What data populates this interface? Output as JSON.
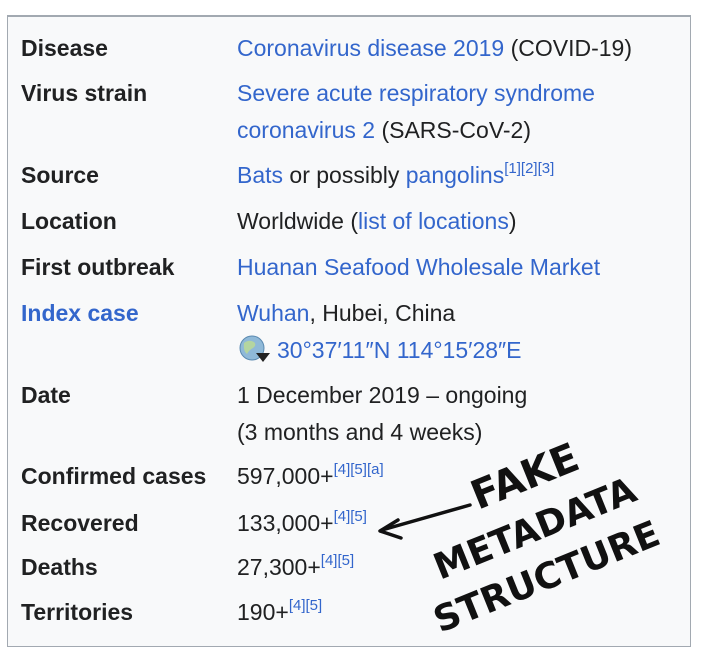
{
  "rows": {
    "disease": {
      "label": "Disease",
      "link": "Coronavirus disease 2019",
      "rest": " (COVID-19)"
    },
    "virus": {
      "label": "Virus strain",
      "link1": "Severe acute respiratory syndrome",
      "link2": "coronavirus 2",
      "rest": " (SARS-CoV-2)"
    },
    "source": {
      "label": "Source",
      "link1": "Bats",
      "mid": " or possibly ",
      "link2": "pangolins",
      "refs": [
        "[1]",
        "[2]",
        "[3]"
      ]
    },
    "location": {
      "label": "Location",
      "pre": "Worldwide (",
      "link": "list of locations",
      "post": ")"
    },
    "outbreak": {
      "label": "First outbreak",
      "link": "Huanan Seafood Wholesale Market"
    },
    "index": {
      "label": "Index case",
      "link": "Wuhan",
      "rest": ", Hubei, China",
      "coords": "30°37′11″N 114°15′28″E"
    },
    "date": {
      "label": "Date",
      "line1": "1 December 2019 – ongoing",
      "line2": "(3 months and 4 weeks)"
    },
    "confirmed": {
      "label": "Confirmed cases",
      "value": "597,000+",
      "refs": [
        "[4]",
        "[5]",
        "[a]"
      ]
    },
    "recovered": {
      "label": "Recovered",
      "value": "133,000+",
      "refs": [
        "[4]",
        "[5]"
      ]
    },
    "deaths": {
      "label": "Deaths",
      "value": "27,300+",
      "refs": [
        "[4]",
        "[5]"
      ]
    },
    "territories": {
      "label": "Territories",
      "value": "190+",
      "refs": [
        "[4]",
        "[5]"
      ]
    }
  },
  "annotation": {
    "line1": "FAKE",
    "line2": "METADATA",
    "line3": "STRUCTURE"
  },
  "colors": {
    "link": "#3366cc",
    "text": "#202122",
    "background": "#f8f9fa",
    "border": "#a2a9b1"
  },
  "icons": {
    "coordinates": "globe-icon"
  }
}
